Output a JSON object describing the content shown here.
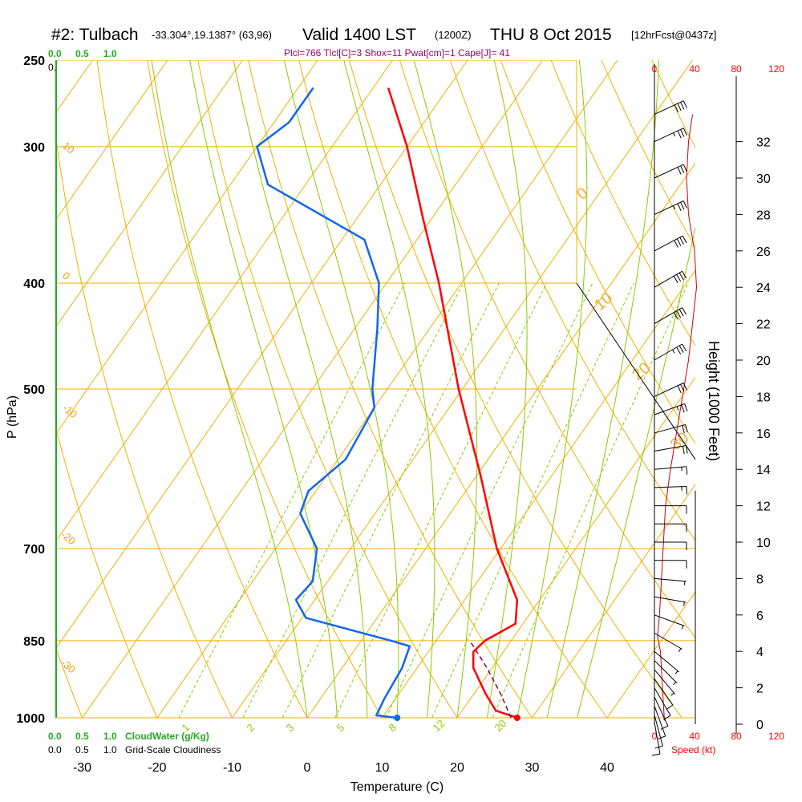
{
  "header": {
    "station": "#2: Tulbach",
    "coords": "-33.304°,19.1387° (63,96)",
    "valid": "Valid 1400 LST",
    "zulu": "(1200Z)",
    "date": "THU 8 Oct 2015",
    "forecast": "[12hrFcst@0437z]"
  },
  "stats_line": "Plcl=766 Tlcl[C]=3 Shox=11 Pwat[cm]=1 Cape[J]= 41",
  "cloudwater_scale": {
    "ticks": [
      "0.0",
      "0.5",
      "1.0"
    ],
    "label": "CloudWater (g/Kg)"
  },
  "cloudiness_scale": {
    "ticks": [
      "0.0",
      "0.5",
      "1.0"
    ],
    "label": "Grid-Scale Cloudiness"
  },
  "speed_scale": {
    "ticks": [
      "0",
      "40",
      "80",
      "120"
    ],
    "label": "Speed (kt)"
  },
  "axes": {
    "xlabel": "Temperature (C)",
    "ylabel": "P (hPa)",
    "height_label": "Height (1000 Feet)"
  },
  "colors": {
    "isobar": "#f0b000",
    "isotherm": "#f0b000",
    "dry_adiabat": "#f0b000",
    "moist_adiabat": "#88cc00",
    "mixing_ratio": "#88cc00",
    "temperature": "#ff0000",
    "dewpoint": "#1166ee",
    "parcel": "#880044",
    "speed": "#cc0000",
    "barb": "#000000"
  },
  "chart_data": {
    "type": "line",
    "title": "#2: Tulbach",
    "skew_t": true,
    "pressure_ticks": [
      250,
      300,
      400,
      500,
      700,
      850,
      1000
    ],
    "temperature_ticks": [
      -30,
      -20,
      -10,
      0,
      10,
      20,
      30,
      40
    ],
    "xlim": [
      -35,
      36
    ],
    "ylim_hpa": [
      1000,
      250
    ],
    "height_ticks_kft": [
      0,
      2,
      4,
      6,
      8,
      10,
      12,
      14,
      16,
      18,
      20,
      22,
      24,
      26,
      28,
      30,
      32
    ],
    "isotherm_labels": [
      "10",
      "0",
      "-10",
      "-20",
      "-30"
    ],
    "skewed_isotherm_labels": [
      "0",
      "10",
      "20",
      "30"
    ],
    "mixing_ratio_labels": [
      "1",
      "2",
      "3",
      "5",
      "8",
      "12",
      "20"
    ],
    "series": [
      {
        "name": "Temperature",
        "points": [
          {
            "p": 1000,
            "t": 28.0
          },
          {
            "p": 985,
            "t": 24.5
          },
          {
            "p": 950,
            "t": 21.5
          },
          {
            "p": 900,
            "t": 17.5
          },
          {
            "p": 870,
            "t": 16.0
          },
          {
            "p": 850,
            "t": 16.5
          },
          {
            "p": 820,
            "t": 19.0
          },
          {
            "p": 780,
            "t": 17.0
          },
          {
            "p": 700,
            "t": 9.5
          },
          {
            "p": 600,
            "t": 0.5
          },
          {
            "p": 500,
            "t": -10.5
          },
          {
            "p": 400,
            "t": -23.0
          },
          {
            "p": 350,
            "t": -31.0
          },
          {
            "p": 300,
            "t": -40.0
          },
          {
            "p": 265,
            "t": -48.0
          }
        ]
      },
      {
        "name": "Dewpoint",
        "points": [
          {
            "p": 1000,
            "t": 12.0
          },
          {
            "p": 995,
            "t": 9.0
          },
          {
            "p": 960,
            "t": 8.5
          },
          {
            "p": 900,
            "t": 8.0
          },
          {
            "p": 860,
            "t": 7.0
          },
          {
            "p": 850,
            "t": 4.0
          },
          {
            "p": 810,
            "t": -9.5
          },
          {
            "p": 780,
            "t": -12.5
          },
          {
            "p": 750,
            "t": -12.0
          },
          {
            "p": 700,
            "t": -14.5
          },
          {
            "p": 650,
            "t": -20.0
          },
          {
            "p": 620,
            "t": -21.0
          },
          {
            "p": 580,
            "t": -19.0
          },
          {
            "p": 520,
            "t": -20.0
          },
          {
            "p": 500,
            "t": -22.0
          },
          {
            "p": 440,
            "t": -27.0
          },
          {
            "p": 400,
            "t": -31.0
          },
          {
            "p": 365,
            "t": -37.0
          },
          {
            "p": 325,
            "t": -55.0
          },
          {
            "p": 300,
            "t": -60.0
          },
          {
            "p": 285,
            "t": -58.0
          },
          {
            "p": 265,
            "t": -58.0
          }
        ]
      },
      {
        "name": "Parcel",
        "points": [
          {
            "p": 1000,
            "t": 27.2
          },
          {
            "p": 950,
            "t": 23.5
          },
          {
            "p": 900,
            "t": 19.3
          },
          {
            "p": 850,
            "t": 14.5
          }
        ]
      }
    ],
    "surface_markers": [
      {
        "series": "Temperature",
        "p": 1000,
        "t": 28.0
      },
      {
        "series": "Dewpoint",
        "p": 1000,
        "t": 12.0
      }
    ],
    "wind_speed_kt": [
      {
        "h": 0.2,
        "s": 10
      },
      {
        "h": 1,
        "s": 9
      },
      {
        "h": 4,
        "s": 6
      },
      {
        "h": 4.8,
        "s": 3
      },
      {
        "h": 6,
        "s": 5
      },
      {
        "h": 8,
        "s": 7
      },
      {
        "h": 10,
        "s": 9
      },
      {
        "h": 12,
        "s": 11
      },
      {
        "h": 14,
        "s": 16
      },
      {
        "h": 16,
        "s": 22
      },
      {
        "h": 18,
        "s": 28
      },
      {
        "h": 20,
        "s": 34
      },
      {
        "h": 22,
        "s": 38
      },
      {
        "h": 24,
        "s": 42
      },
      {
        "h": 26,
        "s": 40
      },
      {
        "h": 28,
        "s": 34
      },
      {
        "h": 30,
        "s": 32
      },
      {
        "h": 32,
        "s": 34
      },
      {
        "h": 33.5,
        "s": 38
      }
    ],
    "wind_barbs": [
      {
        "h": 0.1,
        "dir": 170,
        "spd": 10
      },
      {
        "h": 0.5,
        "dir": 165,
        "spd": 10
      },
      {
        "h": 1.0,
        "dir": 160,
        "spd": 10
      },
      {
        "h": 1.5,
        "dir": 155,
        "spd": 8
      },
      {
        "h": 2.0,
        "dir": 150,
        "spd": 8
      },
      {
        "h": 2.5,
        "dir": 145,
        "spd": 8
      },
      {
        "h": 3.0,
        "dir": 140,
        "spd": 6
      },
      {
        "h": 3.5,
        "dir": 135,
        "spd": 6
      },
      {
        "h": 4.0,
        "dir": 130,
        "spd": 5
      },
      {
        "h": 5.0,
        "dir": 120,
        "spd": 5
      },
      {
        "h": 6.0,
        "dir": 110,
        "spd": 5
      },
      {
        "h": 7.0,
        "dir": 100,
        "spd": 7
      },
      {
        "h": 8.0,
        "dir": 95,
        "spd": 7
      },
      {
        "h": 9.0,
        "dir": 90,
        "spd": 8
      },
      {
        "h": 10.0,
        "dir": 90,
        "spd": 9
      },
      {
        "h": 11.0,
        "dir": 90,
        "spd": 10
      },
      {
        "h": 12.0,
        "dir": 90,
        "spd": 11
      },
      {
        "h": 13.0,
        "dir": 88,
        "spd": 13
      },
      {
        "h": 14.0,
        "dir": 85,
        "spd": 16
      },
      {
        "h": 15.0,
        "dir": 80,
        "spd": 19
      },
      {
        "h": 16.0,
        "dir": 75,
        "spd": 22
      },
      {
        "h": 17.0,
        "dir": 70,
        "spd": 25
      },
      {
        "h": 18.0,
        "dir": 65,
        "spd": 28
      },
      {
        "h": 20.0,
        "dir": 60,
        "spd": 34
      },
      {
        "h": 22.0,
        "dir": 60,
        "spd": 38
      },
      {
        "h": 24.0,
        "dir": 60,
        "spd": 42
      },
      {
        "h": 26.0,
        "dir": 62,
        "spd": 40
      },
      {
        "h": 28.0,
        "dir": 65,
        "spd": 34
      },
      {
        "h": 30.0,
        "dir": 65,
        "spd": 32
      },
      {
        "h": 32.0,
        "dir": 65,
        "spd": 34
      },
      {
        "h": 33.5,
        "dir": 65,
        "spd": 38
      }
    ]
  }
}
